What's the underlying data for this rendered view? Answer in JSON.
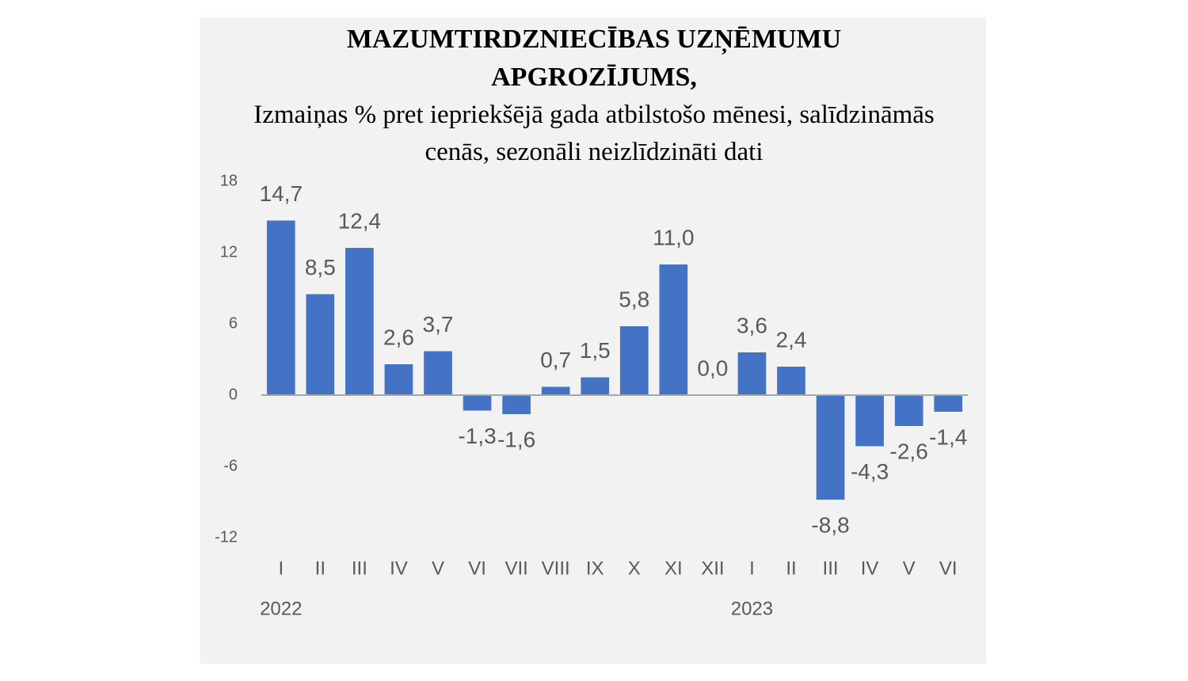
{
  "chart_data": {
    "type": "bar",
    "title": "MAZUMTIRDZNIECĪBAS UZŅĒMUMU APGROZĪJUMS,",
    "subtitle": "Izmaiņas % pret iepriekšējā gada atbilstošo mēnesi, salīdzināmās cenās, sezonāli neizlīdzināti dati",
    "categories": [
      "I",
      "II",
      "III",
      "IV",
      "V",
      "VI",
      "VII",
      "VIII",
      "IX",
      "X",
      "XI",
      "XII",
      "I",
      "II",
      "III",
      "IV",
      "V",
      "VI"
    ],
    "year_labels": [
      "2022",
      null,
      null,
      null,
      null,
      null,
      null,
      null,
      null,
      null,
      null,
      null,
      "2023",
      null,
      null,
      null,
      null,
      null
    ],
    "values": [
      14.7,
      8.5,
      12.4,
      2.6,
      3.7,
      -1.3,
      -1.6,
      0.7,
      1.5,
      5.8,
      11.0,
      0.0,
      3.6,
      2.4,
      -8.8,
      -4.3,
      -2.6,
      -1.4
    ],
    "value_labels": [
      "14,7",
      "8,5",
      "12,4",
      "2,6",
      "3,7",
      "-1,3",
      "-1,6",
      "0,7",
      "1,5",
      "5,8",
      "11,0",
      "0,0",
      "3,6",
      "2,4",
      "-8,8",
      "-4,3",
      "-2,6",
      "-1,4"
    ],
    "color": "#4472c4",
    "ylim": [
      -12,
      18
    ],
    "yticks": [
      -12,
      -6,
      0,
      6,
      12,
      18
    ],
    "grid": false
  }
}
